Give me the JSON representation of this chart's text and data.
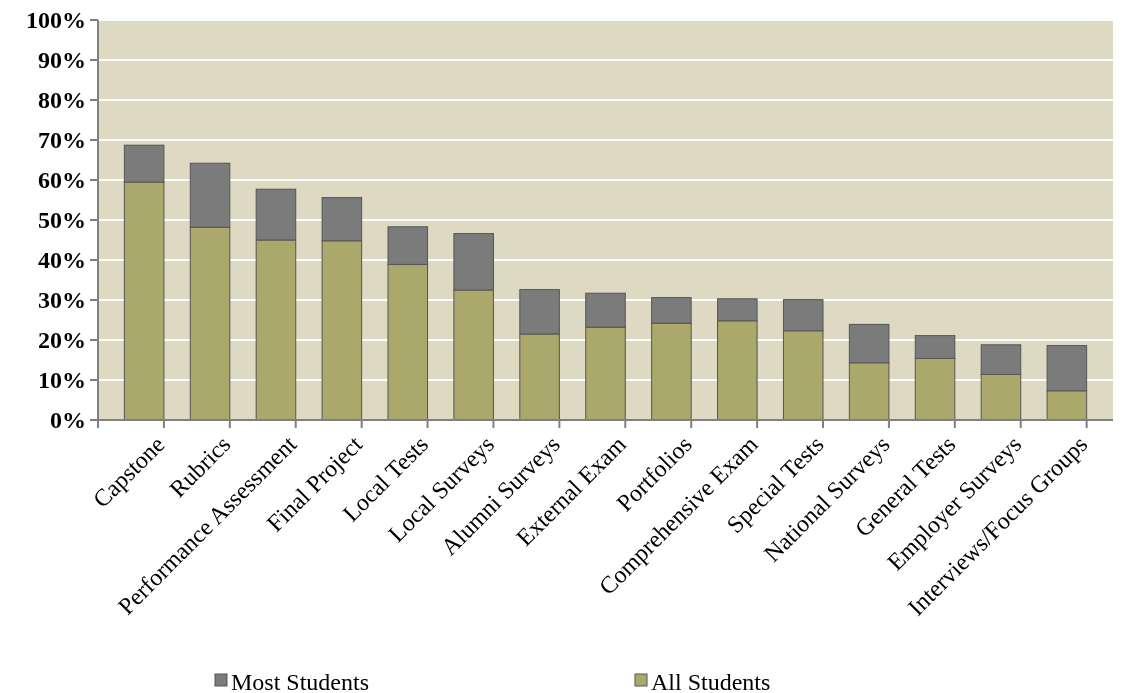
{
  "chart_data": {
    "type": "bar",
    "stacked": true,
    "categories": [
      "Capstone",
      "Rubrics",
      "Performance Assessment",
      "Final Project",
      "Local Tests",
      "Local Surveys",
      "Alumni Surveys",
      "External Exam",
      "Portfolios",
      "Comprehensive Exam",
      "Special Tests",
      "National Surveys",
      "General Tests",
      "Employer Surveys",
      "Interviews/Focus Groups"
    ],
    "series": [
      {
        "name": "All Students",
        "color": "#aaa86b",
        "values": [
          59.5,
          48.2,
          45,
          44.8,
          38.9,
          32.5,
          21.5,
          23.2,
          24.2,
          24.8,
          22.3,
          14.3,
          15.4,
          11.4,
          7.3
        ]
      },
      {
        "name": "Most Students",
        "color": "#7b7b7b",
        "values": [
          9.2,
          16.0,
          12.7,
          10.8,
          9.4,
          14.1,
          11.1,
          8.5,
          6.4,
          5.5,
          7.8,
          9.6,
          5.7,
          7.4,
          11.3
        ]
      }
    ],
    "ylim": [
      0,
      100
    ],
    "yticks": [
      {
        "value": 0,
        "label": "0%"
      },
      {
        "value": 10,
        "label": "10%"
      },
      {
        "value": 20,
        "label": "20%"
      },
      {
        "value": 30,
        "label": "30%"
      },
      {
        "value": 40,
        "label": "40%"
      },
      {
        "value": 50,
        "label": "50%"
      },
      {
        "value": 60,
        "label": "60%"
      },
      {
        "value": 70,
        "label": "70%"
      },
      {
        "value": 80,
        "label": "80%"
      },
      {
        "value": 90,
        "label": "90%"
      },
      {
        "value": 100,
        "label": "100%"
      }
    ],
    "grid": "y",
    "legend": "bottom"
  }
}
